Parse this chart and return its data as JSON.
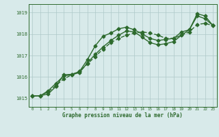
{
  "background_color": "#d8eaea",
  "grid_color": "#aec8c8",
  "line_color": "#2d6a2d",
  "title": "Graphe pression niveau de la mer (hPa)",
  "xlim": [
    -0.5,
    23.5
  ],
  "ylim": [
    1014.6,
    1019.4
  ],
  "yticks": [
    1015,
    1016,
    1017,
    1018,
    1019
  ],
  "xticks": [
    0,
    1,
    2,
    3,
    4,
    5,
    6,
    7,
    8,
    9,
    10,
    11,
    12,
    13,
    14,
    15,
    16,
    17,
    18,
    19,
    20,
    21,
    22,
    23
  ],
  "line1_x": [
    0,
    1,
    2,
    3,
    4,
    5,
    6,
    7,
    8,
    9,
    10,
    11,
    12,
    13,
    14,
    15,
    16,
    17,
    18,
    19,
    20,
    21,
    22,
    23
  ],
  "line1_y": [
    1015.1,
    1015.12,
    1015.2,
    1015.55,
    1016.1,
    1016.12,
    1016.25,
    1016.8,
    1017.45,
    1017.9,
    1018.05,
    1018.25,
    1018.32,
    1018.2,
    1018.0,
    1017.8,
    1017.7,
    1017.75,
    1017.8,
    1018.1,
    1018.2,
    1018.85,
    1018.72,
    1018.4
  ],
  "line2_x": [
    0,
    1,
    2,
    3,
    4,
    5,
    6,
    7,
    8,
    9,
    10,
    11,
    12,
    13,
    14,
    15,
    16,
    17,
    18,
    19,
    20,
    21,
    22,
    23
  ],
  "line2_y": [
    1015.1,
    1015.12,
    1015.3,
    1015.6,
    1015.9,
    1016.1,
    1016.25,
    1016.6,
    1016.95,
    1017.3,
    1017.6,
    1017.8,
    1017.95,
    1018.05,
    1018.1,
    1018.05,
    1017.95,
    1017.8,
    1017.8,
    1017.95,
    1018.1,
    1018.45,
    1018.5,
    1018.4
  ],
  "line3_x": [
    0,
    1,
    2,
    3,
    4,
    5,
    6,
    7,
    8,
    9,
    10,
    11,
    12,
    13,
    14,
    15,
    16,
    17,
    18,
    19,
    20,
    21,
    22,
    23
  ],
  "line3_y": [
    1015.1,
    1015.12,
    1015.35,
    1015.7,
    1016.05,
    1016.1,
    1016.2,
    1016.65,
    1017.05,
    1017.4,
    1017.7,
    1017.95,
    1018.15,
    1018.1,
    1017.85,
    1017.6,
    1017.5,
    1017.55,
    1017.65,
    1017.95,
    1018.2,
    1018.95,
    1018.85,
    1018.4
  ],
  "marker": "D",
  "marker_size": 2.5,
  "line_width": 1.0
}
